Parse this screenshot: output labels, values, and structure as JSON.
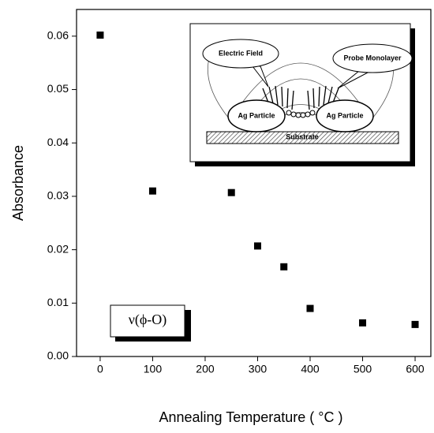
{
  "chart_data": {
    "type": "scatter",
    "x_label": "Annealing Temperature ( °C )",
    "y_label": "Absorbance",
    "x": [
      0,
      100,
      250,
      300,
      350,
      400,
      500,
      600
    ],
    "values": [
      0.0602,
      0.031,
      0.0307,
      0.0207,
      0.0168,
      0.009,
      0.0063,
      0.006
    ],
    "color": "#000000",
    "xlim": [
      -45,
      630
    ],
    "ylim": [
      0,
      0.065
    ],
    "xticks": [
      0,
      100,
      200,
      300,
      400,
      500,
      600
    ],
    "yticks": [
      {
        "value": 0,
        "label": "0.00"
      },
      {
        "value": 0.01,
        "label": "0.01"
      },
      {
        "value": 0.02,
        "label": "0.02"
      },
      {
        "value": 0.03,
        "label": "0.03"
      },
      {
        "value": 0.04,
        "label": "0.04"
      },
      {
        "value": 0.05,
        "label": "0.05"
      },
      {
        "value": 0.06,
        "label": "0.06"
      }
    ],
    "annotation": "ν(ϕ-O)",
    "inset_labels": {
      "field": "Electric Field",
      "monolayer": "Probe Monolayer",
      "particle_left": "Ag Particle",
      "particle_right": "Ag Particle",
      "substrate": "Substrate"
    }
  }
}
